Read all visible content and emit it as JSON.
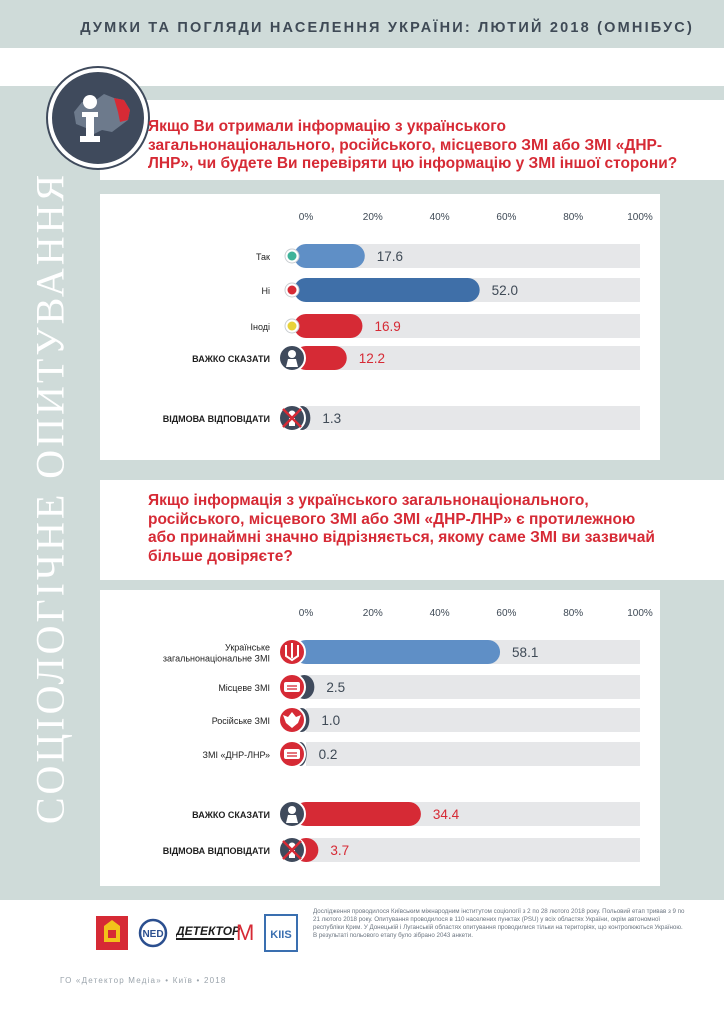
{
  "header": {
    "title": "ДУМКИ ТА ПОГЛЯДИ НАСЕЛЕННЯ УКРАЇНИ: ЛЮТИЙ 2018 (ОМНІБУС)"
  },
  "sidebar": {
    "label": "СОЦІОЛОГІЧНЕ ОПИТУВАННЯ"
  },
  "question1": {
    "lines": [
      "Якщо Ви отримали інформацію з українського",
      "загальнонаціонального, російського, місцевого ЗМІ або ЗМІ «ДНР-",
      "ЛНР», чи будете Ви перевіряти цю інформацію у ЗМІ іншої сторони?"
    ]
  },
  "question2": {
    "lines": [
      "Якщо інформація з українського загальнонаціонального,",
      "російського, місцевого ЗМІ або ЗМІ «ДНР-ЛНР» є протилежною",
      "або принаймні значно відрізняється, якому саме ЗМІ ви зазвичай",
      "більше довіряєте?"
    ]
  },
  "chart_data": [
    {
      "type": "bar",
      "orientation": "horizontal",
      "xlim": [
        0,
        100
      ],
      "ticks": [
        "0%",
        "20%",
        "40%",
        "60%",
        "80%",
        "100%"
      ],
      "categories": [
        "Так",
        "Ні",
        "Іноді",
        "ВАЖКО СКАЗАТИ",
        "ВІДМОВА ВІДПОВІДАТИ"
      ],
      "values": [
        17.6,
        52.0,
        16.9,
        12.2,
        1.3
      ],
      "value_labels": [
        "17.6",
        "52.0",
        "16.9",
        "12.2",
        "1.3"
      ],
      "bar_colors": [
        "#5f8fc6",
        "#3f6fa8",
        "#d62a35",
        "#d62a35",
        "#3f4a5c"
      ],
      "label_colors": [
        "#3f4a56",
        "#3f4a56",
        "#d62a35",
        "#d62a35",
        "#3f4a56"
      ],
      "markers": [
        "dot-green",
        "dot-red",
        "dot-yellow",
        "question-icon",
        "refusal-icon"
      ]
    },
    {
      "type": "bar",
      "orientation": "horizontal",
      "xlim": [
        0,
        100
      ],
      "ticks": [
        "0%",
        "20%",
        "40%",
        "60%",
        "80%",
        "100%"
      ],
      "categories": [
        "Українське загальнонаціональне ЗМІ",
        "Місцеве ЗМІ",
        "Російське ЗМІ",
        "ЗМІ «ДНР-ЛНР»",
        "ВАЖКО СКАЗАТИ",
        "ВІДМОВА ВІДПОВІДАТИ"
      ],
      "category_lines": [
        [
          "Українське",
          "загальнонаціональне ЗМІ"
        ],
        [
          "Місцеве ЗМІ"
        ],
        [
          "Російське ЗМІ"
        ],
        [
          "ЗМІ «ДНР-ЛНР»"
        ],
        [
          "ВАЖКО СКАЗАТИ"
        ],
        [
          "ВІДМОВА ВІДПОВІДАТИ"
        ]
      ],
      "values": [
        58.1,
        2.5,
        1.0,
        0.2,
        34.4,
        3.7
      ],
      "value_labels": [
        "58.1",
        "2.5",
        "1.0",
        "0.2",
        "34.4",
        "3.7"
      ],
      "bar_colors": [
        "#5f8fc6",
        "#3f4a5c",
        "#3f4a5c",
        "#3f4a5c",
        "#d62a35",
        "#d62a35"
      ],
      "label_colors": [
        "#3f4a56",
        "#3f4a56",
        "#3f4a56",
        "#3f4a56",
        "#d62a35",
        "#d62a35"
      ],
      "markers": [
        "trident-icon",
        "newspaper-icon",
        "eagle-icon",
        "newspaper-icon",
        "question-icon",
        "refusal-icon"
      ]
    }
  ],
  "logos": {
    "ned": "NED",
    "detector": "ДЕТЕКТОР",
    "detector_m": "M",
    "kiis": "KIIS"
  },
  "footer": {
    "note": "Дослідження проводилося Київським міжнародним інститутом соціології з 2 по 28 лютого 2018 року. Польовий етап тривав з 9 по 21 лютого 2018 року. Опитування проводилося в 110 населених пунктах (PSU) у всіх областях України, окрім автономної республіки Крим. У Донецькій і Луганській областях опитування проводилися тільки на територіях, що контролюються Україною. В результаті польового етапу було зібрано 2043 анкети.",
    "org": "ГО «Детектор Медіа» • Київ • 2018"
  },
  "colors": {
    "accent_red": "#d62a35",
    "navy": "#3f4a5c",
    "band": "#cfdbd9",
    "track": "#e6e7e9"
  }
}
